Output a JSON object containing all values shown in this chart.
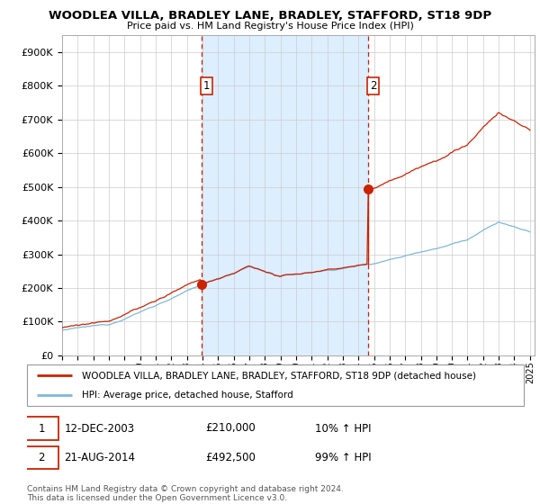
{
  "title": "WOODLEA VILLA, BRADLEY LANE, BRADLEY, STAFFORD, ST18 9DP",
  "subtitle": "Price paid vs. HM Land Registry's House Price Index (HPI)",
  "year_start": 1995,
  "year_end": 2025,
  "ylim": [
    0,
    950000
  ],
  "yticks": [
    0,
    100000,
    200000,
    300000,
    400000,
    500000,
    600000,
    700000,
    800000,
    900000
  ],
  "sale1_date": 2003.95,
  "sale1_price": 210000,
  "sale1_label": "1",
  "sale2_date": 2014.64,
  "sale2_price": 492500,
  "sale2_label": "2",
  "hpi_color": "#7db8d8",
  "price_color": "#cc2200",
  "bg_color": "#ffffff",
  "shaded_color": "#ddeeff",
  "grid_color": "#cccccc",
  "legend_label1": "WOODLEA VILLA, BRADLEY LANE, BRADLEY, STAFFORD, ST18 9DP (detached house)",
  "legend_label2": "HPI: Average price, detached house, Stafford",
  "table_row1": [
    "1",
    "12-DEC-2003",
    "£210,000",
    "10% ↑ HPI"
  ],
  "table_row2": [
    "2",
    "21-AUG-2014",
    "£492,500",
    "99% ↑ HPI"
  ],
  "footer": "Contains HM Land Registry data © Crown copyright and database right 2024.\nThis data is licensed under the Open Government Licence v3.0."
}
